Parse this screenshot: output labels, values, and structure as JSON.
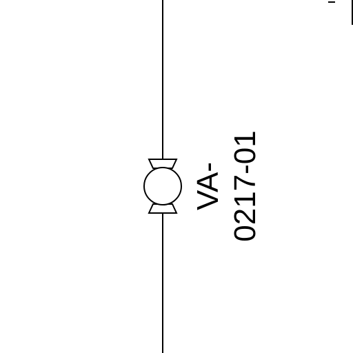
{
  "diagram": {
    "valve": {
      "tag_line1": "VA-",
      "tag_line2": "0217-01",
      "symbol": "ball-valve-icon"
    },
    "colors": {
      "line": "#000000",
      "background": "#ffffff"
    }
  }
}
